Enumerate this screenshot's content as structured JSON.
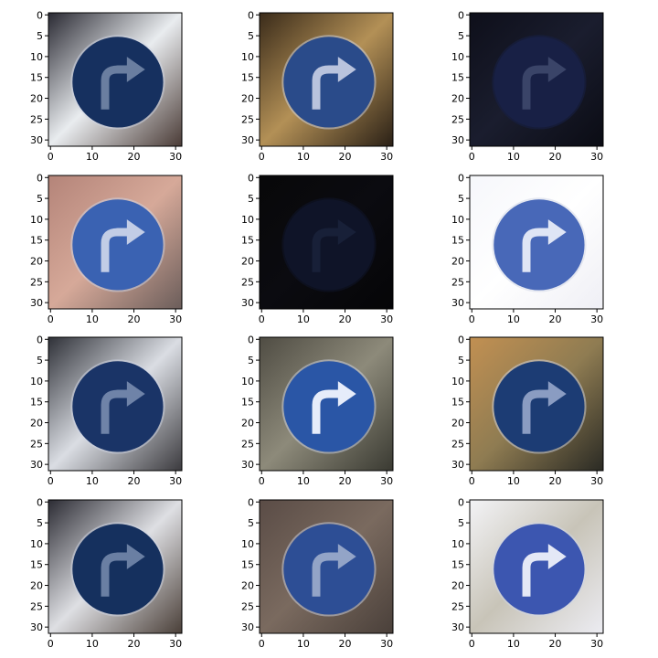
{
  "figure": {
    "rows": 4,
    "cols": 3,
    "x_ticks": [
      "0",
      "10",
      "20",
      "30"
    ],
    "y_ticks": [
      "0",
      "5",
      "10",
      "15",
      "20",
      "25",
      "30"
    ],
    "axis_max": 31,
    "panels": [
      {
        "bg": [
          "#2a2a33",
          "#e9ecef",
          "#4a3b36"
        ],
        "sign": "#16305f",
        "arrow": "#6a7ea0",
        "dark": false
      },
      {
        "bg": [
          "#3a2b1a",
          "#b39056",
          "#2a2016"
        ],
        "sign": "#2a4b8a",
        "arrow": "#b9c3dd",
        "dark": false
      },
      {
        "bg": [
          "#0e0f1a",
          "#1a1d2e",
          "#0b0c14"
        ],
        "sign": "#182045",
        "arrow": "#3a4468",
        "dark": true
      },
      {
        "bg": [
          "#b48479",
          "#d6a999",
          "#6b5d5a"
        ],
        "sign": "#3a62b2",
        "arrow": "#c2cde6",
        "dark": false
      },
      {
        "bg": [
          "#080809",
          "#0b0b10",
          "#050507"
        ],
        "sign": "#0f1428",
        "arrow": "#182038",
        "dark": true
      },
      {
        "bg": [
          "#f6f7fb",
          "#ffffff",
          "#efeff5"
        ],
        "sign": "#4868b8",
        "arrow": "#dfe5f5",
        "dark": false
      },
      {
        "bg": [
          "#2f3138",
          "#dadde3",
          "#3b3a3e"
        ],
        "sign": "#1a3467",
        "arrow": "#6f83a8",
        "dark": false
      },
      {
        "bg": [
          "#4f4c43",
          "#8d8a7a",
          "#3a3a32"
        ],
        "sign": "#2a56a6",
        "arrow": "#e6ecfa",
        "dark": false
      },
      {
        "bg": [
          "#c29052",
          "#8f7c52",
          "#2a2a24"
        ],
        "sign": "#1c3c74",
        "arrow": "#8a9cc2",
        "dark": false
      },
      {
        "bg": [
          "#2c2c34",
          "#dedfe3",
          "#4a3f38"
        ],
        "sign": "#15305e",
        "arrow": "#6a7fa3",
        "dark": false
      },
      {
        "bg": [
          "#5a4c46",
          "#7a6a5f",
          "#4a403a"
        ],
        "sign": "#2d4e95",
        "arrow": "#93a4c7",
        "dark": false
      },
      {
        "bg": [
          "#f3f3f6",
          "#c8c4b8",
          "#ececf2"
        ],
        "sign": "#3c56b0",
        "arrow": "#e4e8f6",
        "dark": false
      }
    ]
  }
}
